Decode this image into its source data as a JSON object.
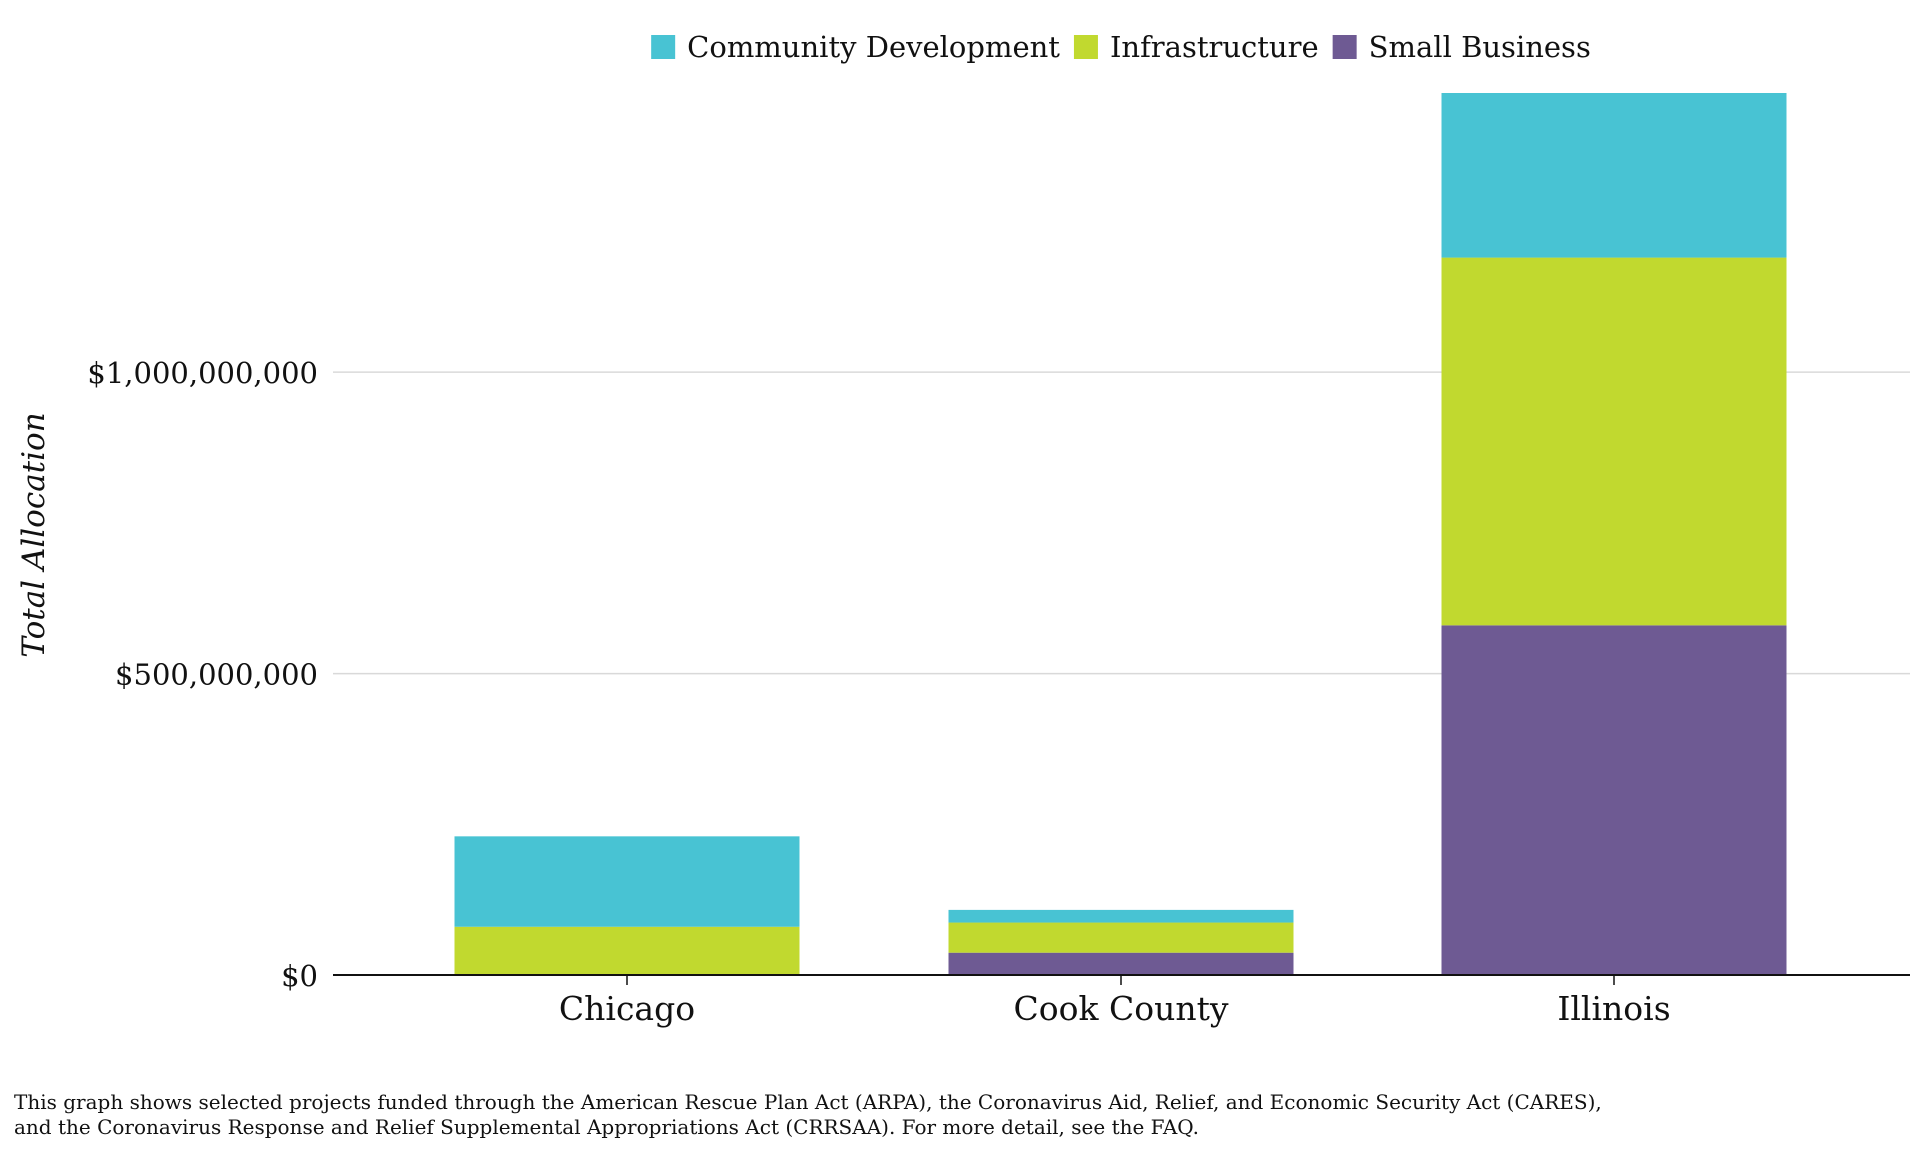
{
  "chart_data": {
    "type": "bar",
    "stacked": true,
    "categories": [
      "Chicago",
      "Cook County",
      "Illinois"
    ],
    "series": [
      {
        "name": "Small Business",
        "color": "#6e5a93",
        "values": [
          0,
          37000000,
          580000000
        ]
      },
      {
        "name": "Infrastructure",
        "color": "#c1d92f",
        "values": [
          80000000,
          50000000,
          610000000
        ]
      },
      {
        "name": "Community Development",
        "color": "#48c3d3",
        "values": [
          150000000,
          21000000,
          273000000
        ]
      }
    ],
    "legend": {
      "position": "top-center",
      "order": [
        "Community Development",
        "Infrastructure",
        "Small Business"
      ]
    },
    "ylabel": "Total Allocation",
    "xlabel": "",
    "ylim": [
      0,
      1463000000
    ],
    "yticks": [
      0,
      500000000,
      1000000000
    ],
    "ytick_labels": [
      "$0",
      "$500,000,000",
      "$1,000,000,000"
    ],
    "grid": true
  },
  "footnote": {
    "line1": "This graph shows selected projects funded through the American Rescue Plan Act (ARPA), the Coronavirus Aid, Relief, and Economic Security Act (CARES),",
    "line2": "and the Coronavirus Response and Relief Supplemental Appropriations Act (CRRSAA). For more detail, see the FAQ."
  }
}
